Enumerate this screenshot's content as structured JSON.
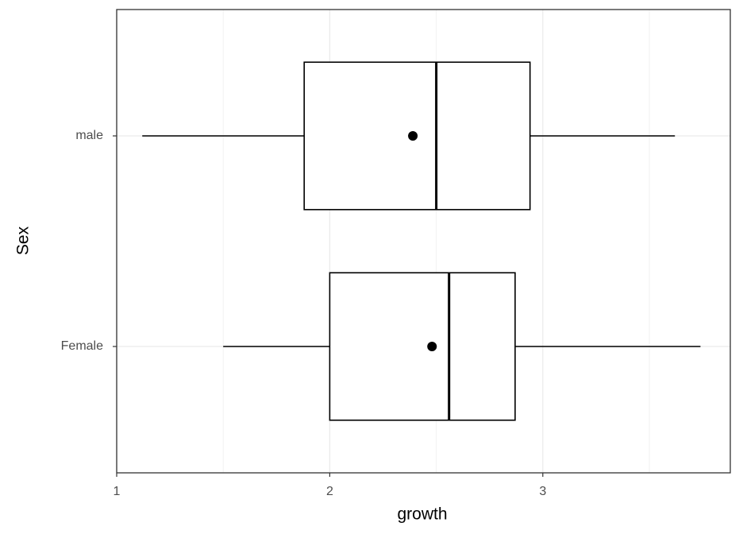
{
  "chart_data": {
    "type": "boxplot",
    "orientation": "horizontal",
    "x_label": "growth",
    "y_label": "Sex",
    "categories": [
      "Female",
      "male"
    ],
    "boxes": [
      {
        "min": 1.5,
        "q1": 2.0,
        "median": 2.56,
        "q3": 2.87,
        "max": 3.74,
        "mean": 2.48
      },
      {
        "min": 1.12,
        "q1": 1.88,
        "median": 2.5,
        "q3": 2.94,
        "max": 3.62,
        "mean": 2.39
      }
    ],
    "color": "#000000",
    "fill": "#ffffff",
    "xlim": [
      1,
      3.88
    ],
    "xticks": [
      1,
      2,
      3
    ],
    "x_minor_ticks": [
      1.5,
      2.5,
      3.5
    ],
    "grid": true
  }
}
